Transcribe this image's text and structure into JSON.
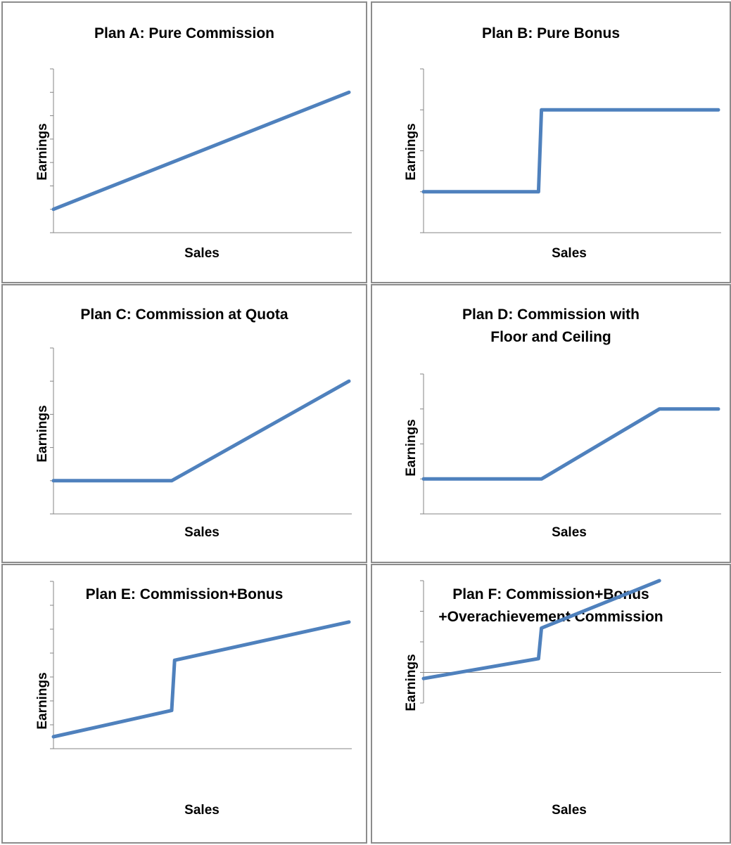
{
  "colors": {
    "line": "#4f81bd",
    "axis": "#858585",
    "border": "#8c8c8c"
  },
  "chart_data": [
    {
      "type": "line",
      "title": "Plan A: Pure Commission",
      "xlabel": "Sales",
      "ylabel": "Earnings",
      "ylim": [
        0,
        7
      ],
      "yticks": 7,
      "xlim": [
        0,
        10
      ],
      "xaxis_at": 0,
      "x": [
        0,
        10
      ],
      "y": [
        1,
        6
      ]
    },
    {
      "type": "line",
      "title": "Plan B: Pure Bonus",
      "xlabel": "Sales",
      "ylabel": "Earnings",
      "ylim": [
        0,
        4
      ],
      "yticks": 4,
      "xlim": [
        0,
        10
      ],
      "xaxis_at": 0,
      "x": [
        0,
        3.9,
        4,
        10
      ],
      "y": [
        1,
        1,
        3,
        3
      ]
    },
    {
      "type": "line",
      "title": "Plan C: Commission at Quota",
      "xlabel": "Sales",
      "ylabel": "Earnings",
      "ylim": [
        0,
        5
      ],
      "yticks": 5,
      "xlim": [
        0,
        10
      ],
      "xaxis_at": 0,
      "x": [
        0,
        4,
        10
      ],
      "y": [
        1,
        1,
        4
      ]
    },
    {
      "type": "line",
      "title": [
        "Plan D: Commission with",
        "Floor and Ceiling"
      ],
      "xlabel": "Sales",
      "ylabel": "Earnings",
      "ylim": [
        0,
        4
      ],
      "yticks": 4,
      "xlim": [
        0,
        10
      ],
      "xaxis_at": 0,
      "x": [
        0,
        4,
        8,
        10
      ],
      "y": [
        1,
        1,
        3,
        3
      ]
    },
    {
      "type": "line",
      "title": "Plan E: Commission+Bonus",
      "xlabel": "Sales",
      "ylabel": "Earnings",
      "ylim": [
        0,
        7
      ],
      "yticks": 7,
      "xlim": [
        0,
        10
      ],
      "xaxis_at": 0,
      "x": [
        0,
        4,
        4.1,
        10
      ],
      "y": [
        0.5,
        1.6,
        3.7,
        5.3
      ]
    },
    {
      "type": "line",
      "title": [
        "Plan F: Commission+Bonus",
        "+Overachievement Commission"
      ],
      "xlabel": "Sales",
      "ylabel": "Earnings",
      "ylim": [
        -1,
        3
      ],
      "yticks": 4,
      "xlim": [
        0,
        10
      ],
      "xaxis_at": 0,
      "x": [
        0,
        3.9,
        4,
        8
      ],
      "y": [
        -0.2,
        0.45,
        1.45,
        3
      ]
    }
  ]
}
